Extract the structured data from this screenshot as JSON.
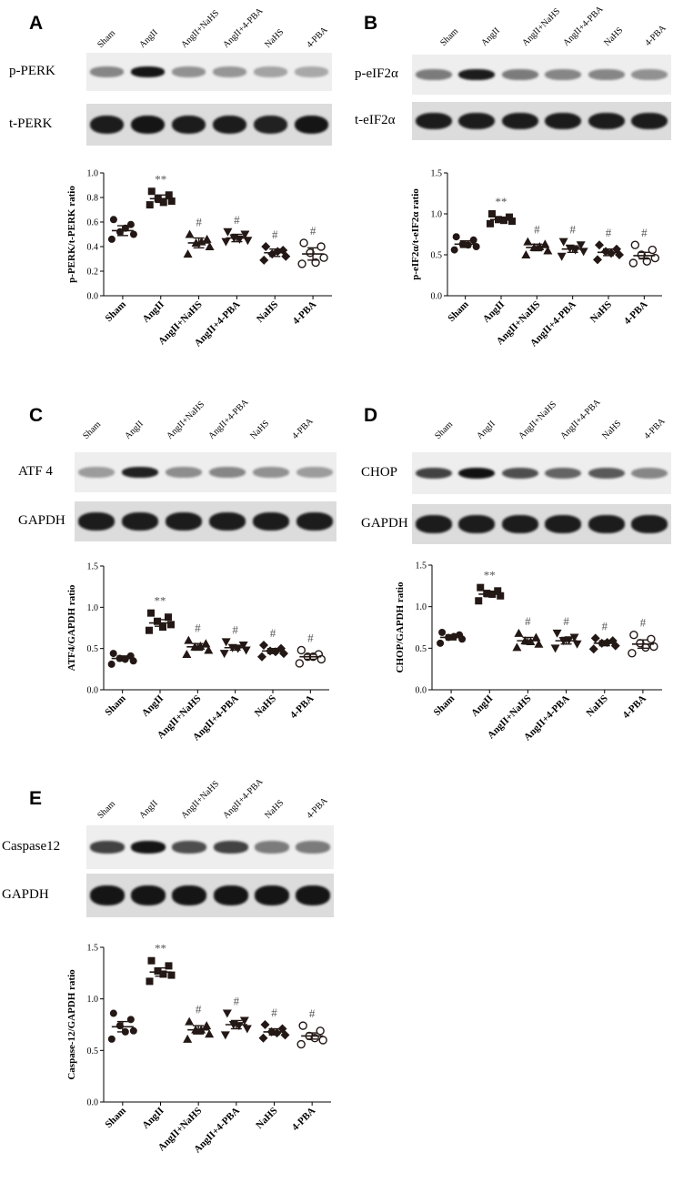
{
  "figure": {
    "panels": [
      {
        "letter": "A",
        "lanes": [
          "Sham",
          "AngII",
          "AngII+NaHS",
          "AngII+4-PBA",
          "NaHS",
          "4-PBA"
        ],
        "blots": [
          {
            "label": "p-PERK",
            "intensity": [
              0.45,
              0.95,
              0.4,
              0.38,
              0.32,
              0.3
            ]
          },
          {
            "label": "t-PERK",
            "intensity": [
              0.92,
              0.95,
              0.92,
              0.92,
              0.9,
              0.95
            ]
          }
        ]
      },
      {
        "letter": "B",
        "lanes": [
          "Sham",
          "AngII",
          "AngII+NaHS",
          "AngII+4-PBA",
          "NaHS",
          "4-PBA"
        ],
        "blots": [
          {
            "label": "p-eIF2α",
            "intensity": [
              0.5,
              0.92,
              0.5,
              0.45,
              0.45,
              0.4
            ]
          },
          {
            "label": "t-eIF2α",
            "intensity": [
              0.92,
              0.92,
              0.92,
              0.92,
              0.92,
              0.92
            ]
          }
        ]
      },
      {
        "letter": "C",
        "lanes": [
          "Sham",
          "AngII",
          "AngII+NaHS",
          "AngII+4-PBA",
          "NaHS",
          "4-PBA"
        ],
        "blots": [
          {
            "label": "ATF 4",
            "intensity": [
              0.35,
              0.9,
              0.42,
              0.45,
              0.4,
              0.35
            ]
          },
          {
            "label": "GAPDH",
            "intensity": [
              0.92,
              0.92,
              0.92,
              0.92,
              0.92,
              0.92
            ]
          }
        ]
      },
      {
        "letter": "D",
        "lanes": [
          "Sham",
          "AngII",
          "AngII+NaHS",
          "AngII+4-PBA",
          "NaHS",
          "4-PBA"
        ],
        "blots": [
          {
            "label": "CHOP",
            "intensity": [
              0.75,
              0.97,
              0.7,
              0.6,
              0.65,
              0.45
            ]
          },
          {
            "label": "GAPDH",
            "intensity": [
              0.92,
              0.92,
              0.92,
              0.92,
              0.92,
              0.92
            ]
          }
        ]
      },
      {
        "letter": "E",
        "lanes": [
          "Sham",
          "AngII",
          "AngII+NaHS",
          "AngII+4-PBA",
          "NaHS",
          "4-PBA"
        ],
        "blots": [
          {
            "label": "Caspase12",
            "intensity": [
              0.75,
              0.95,
              0.7,
              0.75,
              0.5,
              0.5
            ]
          },
          {
            "label": "GAPDH",
            "intensity": [
              0.95,
              0.95,
              0.95,
              0.95,
              0.95,
              0.95
            ]
          }
        ]
      }
    ]
  },
  "chart_data": [
    {
      "panel": "A",
      "type": "scatter",
      "ylabel": "p-PERK/t-PERK ratio",
      "ylim": [
        0,
        1.0
      ],
      "yticks": [
        0.0,
        0.2,
        0.4,
        0.6,
        0.8,
        1.0
      ],
      "categories": [
        "Sham",
        "AngII",
        "AngII+NaHS",
        "AngII+4-PBA",
        "NaHS",
        "4-PBA"
      ],
      "markers": [
        "circle",
        "square",
        "triangle-up",
        "triangle-down",
        "diamond",
        "open-circle"
      ],
      "means": [
        0.53,
        0.79,
        0.43,
        0.47,
        0.35,
        0.34
      ],
      "sems": [
        0.04,
        0.03,
        0.04,
        0.03,
        0.03,
        0.05
      ],
      "points": [
        [
          0.62,
          0.58,
          0.52,
          0.5,
          0.46,
          0.55
        ],
        [
          0.85,
          0.82,
          0.79,
          0.77,
          0.74,
          0.76
        ],
        [
          0.5,
          0.46,
          0.43,
          0.4,
          0.34,
          0.44
        ],
        [
          0.52,
          0.5,
          0.47,
          0.45,
          0.44,
          0.46
        ],
        [
          0.4,
          0.37,
          0.34,
          0.32,
          0.29,
          0.36
        ],
        [
          0.43,
          0.4,
          0.35,
          0.31,
          0.26,
          0.27
        ]
      ],
      "annotations": [
        "",
        "**",
        "#",
        "#",
        "#",
        "#"
      ]
    },
    {
      "panel": "B",
      "type": "scatter",
      "ylabel": "p-eIF2α/t-eIF2α ratio",
      "ylim": [
        0,
        1.5
      ],
      "yticks": [
        0.0,
        0.5,
        1.0,
        1.5
      ],
      "categories": [
        "Sham",
        "AngII",
        "AngII+NaHS",
        "AngII+4-PBA",
        "NaHS",
        "4-PBA"
      ],
      "markers": [
        "circle",
        "square",
        "triangle-up",
        "triangle-down",
        "diamond",
        "open-circle"
      ],
      "means": [
        0.63,
        0.93,
        0.59,
        0.57,
        0.53,
        0.49
      ],
      "sems": [
        0.04,
        0.03,
        0.04,
        0.04,
        0.04,
        0.04
      ],
      "points": [
        [
          0.72,
          0.68,
          0.63,
          0.6,
          0.56,
          0.62
        ],
        [
          1.0,
          0.96,
          0.93,
          0.91,
          0.88,
          0.92
        ],
        [
          0.66,
          0.63,
          0.59,
          0.55,
          0.5,
          0.6
        ],
        [
          0.66,
          0.62,
          0.58,
          0.54,
          0.48,
          0.56
        ],
        [
          0.62,
          0.57,
          0.54,
          0.5,
          0.44,
          0.52
        ],
        [
          0.62,
          0.56,
          0.5,
          0.46,
          0.4,
          0.42
        ]
      ],
      "annotations": [
        "",
        "**",
        "#",
        "#",
        "#",
        "#"
      ]
    },
    {
      "panel": "C",
      "type": "scatter",
      "ylabel": "ATF4/GAPDH ratio",
      "ylim": [
        0,
        1.5
      ],
      "yticks": [
        0.0,
        0.5,
        1.0,
        1.5
      ],
      "categories": [
        "Sham",
        "AngII",
        "AngII+NaHS",
        "AngII+4-PBA",
        "NaHS",
        "4-PBA"
      ],
      "markers": [
        "circle",
        "square",
        "triangle-up",
        "triangle-down",
        "diamond",
        "open-circle"
      ],
      "means": [
        0.38,
        0.81,
        0.52,
        0.51,
        0.47,
        0.4
      ],
      "sems": [
        0.03,
        0.04,
        0.04,
        0.03,
        0.03,
        0.03
      ],
      "points": [
        [
          0.44,
          0.41,
          0.38,
          0.35,
          0.31,
          0.37
        ],
        [
          0.93,
          0.88,
          0.83,
          0.79,
          0.72,
          0.76
        ],
        [
          0.6,
          0.56,
          0.52,
          0.48,
          0.43,
          0.53
        ],
        [
          0.58,
          0.54,
          0.51,
          0.48,
          0.44,
          0.5
        ],
        [
          0.54,
          0.5,
          0.47,
          0.44,
          0.4,
          0.46
        ],
        [
          0.48,
          0.43,
          0.4,
          0.37,
          0.32,
          0.4
        ]
      ],
      "annotations": [
        "",
        "**",
        "#",
        "#",
        "#",
        "#"
      ]
    },
    {
      "panel": "D",
      "type": "scatter",
      "ylabel": "CHOP/GAPDH ratio",
      "ylim": [
        0,
        1.5
      ],
      "yticks": [
        0.0,
        0.5,
        1.0,
        1.5
      ],
      "categories": [
        "Sham",
        "AngII",
        "AngII+NaHS",
        "AngII+4-PBA",
        "NaHS",
        "4-PBA"
      ],
      "markers": [
        "circle",
        "square",
        "triangle-up",
        "triangle-down",
        "diamond",
        "open-circle"
      ],
      "means": [
        0.63,
        1.15,
        0.59,
        0.59,
        0.56,
        0.55
      ],
      "sems": [
        0.03,
        0.03,
        0.04,
        0.04,
        0.03,
        0.05
      ],
      "points": [
        [
          0.69,
          0.66,
          0.63,
          0.61,
          0.56,
          0.64
        ],
        [
          1.23,
          1.19,
          1.16,
          1.13,
          1.07,
          1.15
        ],
        [
          0.68,
          0.63,
          0.59,
          0.55,
          0.51,
          0.58
        ],
        [
          0.68,
          0.63,
          0.59,
          0.55,
          0.5,
          0.6
        ],
        [
          0.62,
          0.59,
          0.56,
          0.53,
          0.49,
          0.57
        ],
        [
          0.66,
          0.61,
          0.56,
          0.52,
          0.44,
          0.51
        ]
      ],
      "annotations": [
        "",
        "**",
        "#",
        "#",
        "#",
        "#"
      ]
    },
    {
      "panel": "E",
      "type": "scatter",
      "ylabel": "Caspase-12/GAPDH ratio",
      "ylim": [
        0,
        1.5
      ],
      "yticks": [
        0.0,
        0.5,
        1.0,
        1.5
      ],
      "categories": [
        "Sham",
        "AngII",
        "AngII+NaHS",
        "AngII+4-PBA",
        "NaHS",
        "4-PBA"
      ],
      "markers": [
        "circle",
        "square",
        "triangle-up",
        "triangle-down",
        "diamond",
        "open-circle"
      ],
      "means": [
        0.73,
        1.26,
        0.7,
        0.75,
        0.68,
        0.64
      ],
      "sems": [
        0.05,
        0.04,
        0.04,
        0.04,
        0.03,
        0.03
      ],
      "points": [
        [
          0.86,
          0.8,
          0.74,
          0.69,
          0.61,
          0.68
        ],
        [
          1.37,
          1.32,
          1.27,
          1.23,
          1.17,
          1.24
        ],
        [
          0.78,
          0.74,
          0.7,
          0.66,
          0.61,
          0.7
        ],
        [
          0.86,
          0.79,
          0.75,
          0.71,
          0.65,
          0.74
        ],
        [
          0.75,
          0.71,
          0.68,
          0.65,
          0.62,
          0.67
        ],
        [
          0.74,
          0.69,
          0.64,
          0.6,
          0.56,
          0.62
        ]
      ],
      "annotations": [
        "",
        "**",
        "#",
        "#",
        "#",
        "#"
      ]
    }
  ]
}
